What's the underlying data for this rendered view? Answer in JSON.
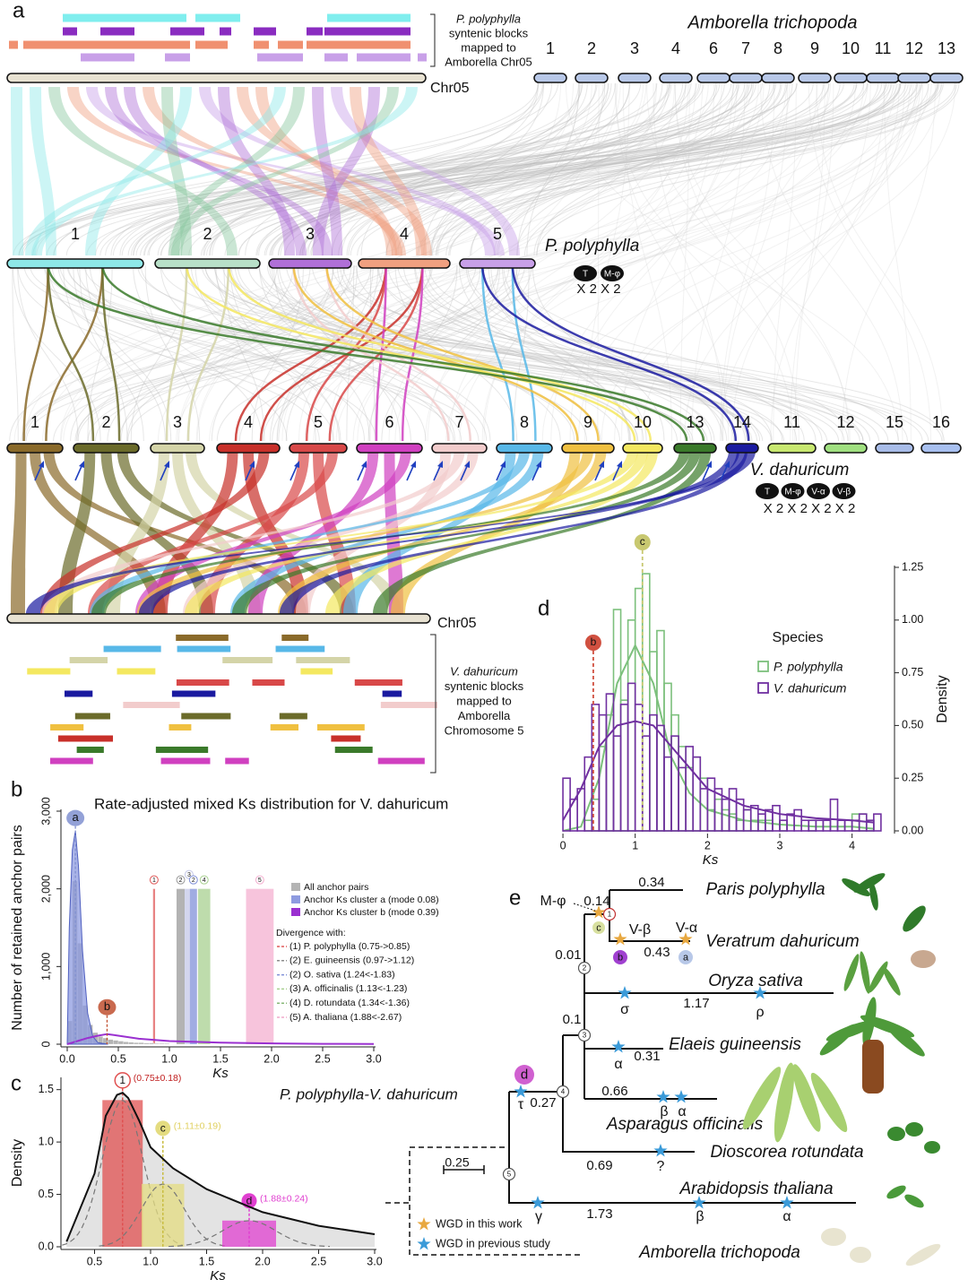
{
  "panel_a": {
    "label": "a",
    "top_legend": [
      "P. polyphylla",
      "syntenic blocks",
      "mapped to",
      "Amborella Chr05"
    ],
    "amborella": {
      "name": "Amborella trichopoda",
      "chr05": "Chr05",
      "chromosomes": [
        "1",
        "2",
        "3",
        "4",
        "6",
        "7",
        "8",
        "9",
        "10",
        "11",
        "12",
        "13"
      ]
    },
    "polyphylla": {
      "name": "P. polyphylla",
      "chromosomes": [
        "1",
        "2",
        "3",
        "4",
        "5"
      ],
      "events": [
        "T",
        "M-φ"
      ],
      "multiplier": "X 2 X 2"
    },
    "dahuricum": {
      "name": "V. dahuricum",
      "chromosomes": [
        "1",
        "2",
        "3",
        "4",
        "5",
        "6",
        "7",
        "8",
        "9",
        "10",
        "13",
        "14",
        "11",
        "12",
        "15",
        "16"
      ],
      "events": [
        "T",
        "M-φ",
        "V-α",
        "V-β"
      ],
      "multiplier": "X 2 X 2 X 2 X 2"
    },
    "bottom_chr": "Chr05",
    "bottom_legend": [
      "V. dahuricum",
      "syntenic blocks",
      "mapped to",
      "Amborella",
      "Chromosome 5"
    ]
  },
  "chart_data": [
    {
      "type": "histogram",
      "panel": "b",
      "title": "Rate-adjusted mixed Ks distribution for V. dahuricum",
      "xlabel": "Ks",
      "ylabel": "Number of retained anchor pairs",
      "xlim": [
        0,
        3.0
      ],
      "xticks": [
        {
          "value": 0,
          "label": "0.0"
        },
        0.5,
        {
          "value": 1,
          "label": "1.0"
        },
        1.5,
        {
          "value": 2,
          "label": "2.0"
        },
        2.5,
        {
          "value": 3,
          "label": "3.0"
        }
      ],
      "ylim": [
        0,
        3000
      ],
      "yticks": [
        0,
        {
          "value": 1000,
          "label": "1,000"
        },
        {
          "value": 2000,
          "label": "2,000"
        },
        {
          "value": 3000,
          "label": "3,000"
        }
      ],
      "bins": [
        0,
        0.05,
        0.1,
        0.15,
        0.2,
        0.25,
        0.3,
        0.35,
        0.4,
        0.45,
        0.5,
        0.55,
        0.6,
        0.65,
        0.7,
        0.75,
        0.8,
        0.85,
        0.9,
        0.95,
        1.0
      ],
      "series": [
        {
          "name": "All anchor pairs",
          "color": "#b4b4b4",
          "values": [
            300,
            2100,
            1300,
            500,
            250,
            150,
            100,
            80,
            60,
            50,
            40,
            30,
            25,
            20,
            20,
            15,
            15,
            10,
            10,
            10
          ]
        },
        {
          "name": "Anchor Ks cluster a (mode 0.08)",
          "color": "#8e9be0",
          "x": [
            0,
            0.02,
            0.05,
            0.08,
            0.11,
            0.15,
            0.2,
            0.25,
            0.3,
            0.4
          ],
          "values": [
            0,
            1500,
            2500,
            2750,
            2300,
            1200,
            400,
            100,
            20,
            0
          ]
        },
        {
          "name": "Anchor Ks cluster b (mode 0.39)",
          "color": "#9a30d0",
          "x": [
            0,
            0.1,
            0.2,
            0.3,
            0.39,
            0.5,
            0.7,
            1.0,
            1.5,
            2.0,
            2.5,
            3.0
          ],
          "values": [
            0,
            40,
            80,
            110,
            130,
            110,
            70,
            40,
            20,
            10,
            5,
            2
          ]
        }
      ],
      "legend_title": "Divergence with:",
      "divergences": [
        {
          "label": "(1) P. polyphylla (0.75->0.85)",
          "color": "#e05a5a"
        },
        {
          "label": "(2) E. guineensis (0.97->1.12)",
          "color": "#8c8c8c"
        },
        {
          "label": "(2) O. sativa (1.24<-1.83)",
          "color": "#8090d8"
        },
        {
          "label": "(3) A. officinalis (1.13<-1.23)",
          "color": "#a8d090"
        },
        {
          "label": "(4) D. rotundata (1.34<-1.36)",
          "color": "#88b878"
        },
        {
          "label": "(5) A. thaliana (1.88<-2.67)",
          "color": "#f0a8cc"
        }
      ],
      "bands": [
        {
          "label": "1",
          "xlim": [
            0.84,
            0.86
          ],
          "top": 2000,
          "color": "#e05a5a"
        },
        {
          "label": "2",
          "xlim": [
            1.07,
            1.15
          ],
          "top": 2000,
          "color": "#9a9a9a"
        },
        {
          "label": "3",
          "xlim": [
            1.15,
            1.2
          ],
          "top": 2000,
          "color": "#c4c8e8"
        },
        {
          "label": "2",
          "xlim": [
            1.2,
            1.27
          ],
          "top": 2000,
          "color": "#8090d8"
        },
        {
          "label": "4",
          "xlim": [
            1.28,
            1.4
          ],
          "top": 2000,
          "color": "#a8d090"
        },
        {
          "label": "5",
          "xlim": [
            1.75,
            2.02
          ],
          "top": 2000,
          "color": "#f4b0d0"
        }
      ],
      "peaks": [
        {
          "label": "a",
          "x": 0.08,
          "y": 2750,
          "color": "#8090d0"
        },
        {
          "label": "b",
          "x": 0.39,
          "y": 130,
          "color": "#c05030"
        }
      ]
    },
    {
      "type": "density",
      "panel": "c",
      "title": "P. polyphylla-V. dahuricum",
      "xlabel": "Ks",
      "ylabel": "Density",
      "xlim": [
        0.2,
        3.0
      ],
      "xticks": [
        0.5,
        {
          "value": 1,
          "label": "1.0"
        },
        1.5,
        {
          "value": 2,
          "label": "2.0"
        },
        2.5,
        {
          "value": 3,
          "label": "3.0"
        }
      ],
      "ylim": [
        0,
        1.6
      ],
      "yticks": [
        {
          "value": 0,
          "label": "0.0"
        },
        0.5,
        {
          "value": 1,
          "label": "1.0"
        },
        1.5
      ],
      "x": [
        0.25,
        0.5,
        0.6,
        0.7,
        0.75,
        0.8,
        0.9,
        1.0,
        1.2,
        1.5,
        2.0,
        2.5,
        3.0
      ],
      "values": [
        0.05,
        0.7,
        1.25,
        1.45,
        1.47,
        1.42,
        1.2,
        0.95,
        0.75,
        0.55,
        0.33,
        0.2,
        0.12
      ],
      "color": "#111111",
      "components": [
        {
          "label": "1",
          "mean": 0.75,
          "sd": 0.18,
          "peak": 1.4,
          "value_label": "(0.75±0.18)",
          "color": "#e05050"
        },
        {
          "label": "c",
          "mean": 1.11,
          "sd": 0.19,
          "peak": 0.6,
          "value_label": "(1.11±0.19)",
          "color": "#e4dc80"
        },
        {
          "label": "d",
          "mean": 1.88,
          "sd": 0.24,
          "peak": 0.25,
          "value_label": "(1.88±0.24)",
          "color": "#e040d0"
        }
      ]
    },
    {
      "type": "histogram",
      "panel": "d",
      "xlabel": "Ks",
      "ylabel": "Density",
      "legend_title": "Species",
      "xlim": [
        -0.1,
        4.55
      ],
      "xticks": [
        0,
        1,
        2,
        3,
        4
      ],
      "ylim": [
        0,
        1.25
      ],
      "yticks": [
        {
          "value": 0,
          "label": "0.00"
        },
        0.25,
        {
          "value": 0.5,
          "label": "0.50"
        },
        0.75,
        {
          "value": 1,
          "label": "1.00"
        },
        1.25
      ],
      "bins": [
        0,
        0.1,
        0.2,
        0.3,
        0.4,
        0.5,
        0.6,
        0.7,
        0.8,
        0.9,
        1.0,
        1.1,
        1.2,
        1.3,
        1.4,
        1.5,
        1.6,
        1.7,
        1.8,
        1.9,
        2.0,
        2.1,
        2.2,
        2.3,
        2.4,
        2.5,
        2.6,
        2.7,
        2.8,
        2.9,
        3.0,
        3.1,
        3.2,
        3.3,
        3.4,
        3.5,
        3.6,
        3.7,
        3.8,
        3.9,
        4.0,
        4.1,
        4.2,
        4.3,
        4.4
      ],
      "kde_x": [
        0,
        0.25,
        0.5,
        0.75,
        1.0,
        1.25,
        1.5,
        1.75,
        2.0,
        2.5,
        3.0,
        3.5,
        4.0,
        4.3
      ],
      "series": [
        {
          "name": "P. polyphylla",
          "color": "#7cc07c",
          "values": [
            0,
            0,
            0,
            0.05,
            0.15,
            0.4,
            0.55,
            1.05,
            0.62,
            1.0,
            1.15,
            1.22,
            0.85,
            0.95,
            0.7,
            0.55,
            0.4,
            0.3,
            0.35,
            0.25,
            0.1,
            0.15,
            0.1,
            0.08,
            0.05,
            0.1,
            0.05,
            0.05,
            0.05,
            0,
            0.05,
            0,
            0,
            0,
            0.05,
            0,
            0,
            0,
            0,
            0,
            0.08,
            0.08,
            0.05,
            0
          ],
          "kde": [
            0,
            0.02,
            0.25,
            0.7,
            0.88,
            0.7,
            0.35,
            0.18,
            0.1,
            0.05,
            0.03,
            0.02,
            0.02,
            0.01
          ]
        },
        {
          "name": "V. dahuricum",
          "color": "#7030a0",
          "values": [
            0.25,
            0.15,
            0.2,
            0.35,
            0.6,
            0.55,
            0.65,
            0.45,
            0.6,
            0.7,
            0.6,
            0.45,
            0.55,
            0.5,
            0.35,
            0.45,
            0.3,
            0.4,
            0.35,
            0.2,
            0.25,
            0.2,
            0.15,
            0.2,
            0.15,
            0.1,
            0.12,
            0.08,
            0.1,
            0.12,
            0.05,
            0.08,
            0.1,
            0.05,
            0.05,
            0.05,
            0.05,
            0.15,
            0.05,
            0.05,
            0.05,
            0.08,
            0.05,
            0.08
          ],
          "kde": [
            0.05,
            0.2,
            0.4,
            0.5,
            0.52,
            0.5,
            0.4,
            0.3,
            0.2,
            0.12,
            0.08,
            0.06,
            0.05,
            0.04
          ]
        }
      ],
      "markers": [
        {
          "label": "b",
          "x": 0.42,
          "color": "#d05040"
        },
        {
          "label": "c",
          "x": 1.1,
          "color": "#c8c870"
        }
      ]
    }
  ],
  "panel_e": {
    "label": "e",
    "nodes": [
      "1",
      "2",
      "3",
      "4",
      "5"
    ],
    "taxa": [
      "Paris polyphylla",
      "Veratrum dahuricum",
      "Oryza sativa",
      "Elaeis guineensis",
      "Asparagus officinalis",
      "Dioscorea rotundata",
      "Arabidopsis thaliana",
      "Amborella trichopoda"
    ],
    "branch_lengths": [
      "0.34",
      "0.43",
      "0.14",
      "0.01",
      "1.17",
      "0.1",
      "0.31",
      "0.66",
      "0.27",
      "0.69",
      "1.73"
    ],
    "events": [
      "M-φ",
      "V-β",
      "V-α",
      "σ",
      "ρ",
      "α",
      "β",
      "α",
      "τ",
      "?",
      "γ",
      "β",
      "α"
    ],
    "event_markers": [
      "c",
      "b",
      "a",
      "d"
    ],
    "scale": "0.25",
    "legend": [
      "WGD in this work",
      "WGD in previous study"
    ]
  }
}
